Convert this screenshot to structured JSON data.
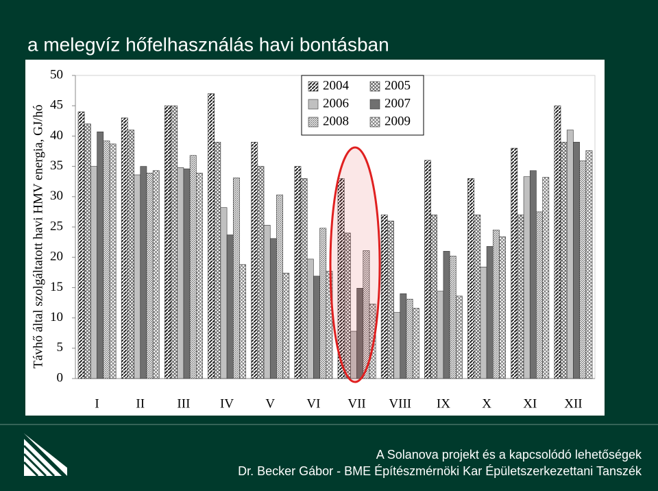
{
  "slide_title": "a melegvíz hőfelhasználás havi bontásban",
  "chart_data": {
    "type": "bar",
    "ylabel": "Távhő által szolgáltatott havi HMV energia, GJ/hó",
    "categories": [
      "I",
      "II",
      "III",
      "IV",
      "V",
      "VI",
      "VII",
      "VIII",
      "IX",
      "X",
      "XI",
      "XII"
    ],
    "series": [
      {
        "name": "2004",
        "color": "#222222",
        "pattern": "diagonal",
        "values": [
          44,
          43,
          45,
          47,
          39,
          35,
          33,
          27,
          36,
          33,
          38,
          45
        ]
      },
      {
        "name": "2005",
        "color": "#555555",
        "pattern": "cross",
        "values": [
          42,
          41,
          45,
          39,
          35,
          33,
          24,
          26,
          27,
          27,
          27,
          39
        ]
      },
      {
        "name": "2006",
        "color": "#c0c0c0",
        "pattern": "solid",
        "values": [
          35,
          33.6,
          34.8,
          28.2,
          25.3,
          19.7,
          7.8,
          10.9,
          14.4,
          18.4,
          33.3,
          41
        ]
      },
      {
        "name": "2007",
        "color": "#707070",
        "pattern": "solid",
        "values": [
          40.7,
          35,
          34.6,
          23.7,
          23.1,
          16.9,
          14.9,
          14,
          21,
          21.8,
          34.3,
          39
        ]
      },
      {
        "name": "2008",
        "color": "#666666",
        "pattern": "dense-diagonal",
        "values": [
          39.2,
          33.9,
          36.8,
          33.1,
          30.3,
          24.8,
          21.1,
          13.1,
          20.2,
          24.5,
          27.5,
          35.9
        ]
      },
      {
        "name": "2009",
        "color": "#777777",
        "pattern": "cross",
        "values": [
          38.7,
          34.3,
          33.9,
          18.8,
          17.4,
          17.7,
          12.3,
          11.6,
          13.6,
          23.4,
          33.2,
          37.6
        ]
      }
    ],
    "ylim": [
      0,
      50
    ],
    "yticks": [
      0,
      5,
      10,
      15,
      20,
      25,
      30,
      35,
      40,
      45,
      50
    ],
    "legend": "top-center"
  },
  "footer": {
    "line1": "A Solanova projekt és a kapcsolódó lehetőségek",
    "line2": "Dr. Becker Gábor - BME Építészmérnöki Kar Épületszerkezettani Tanszék"
  }
}
